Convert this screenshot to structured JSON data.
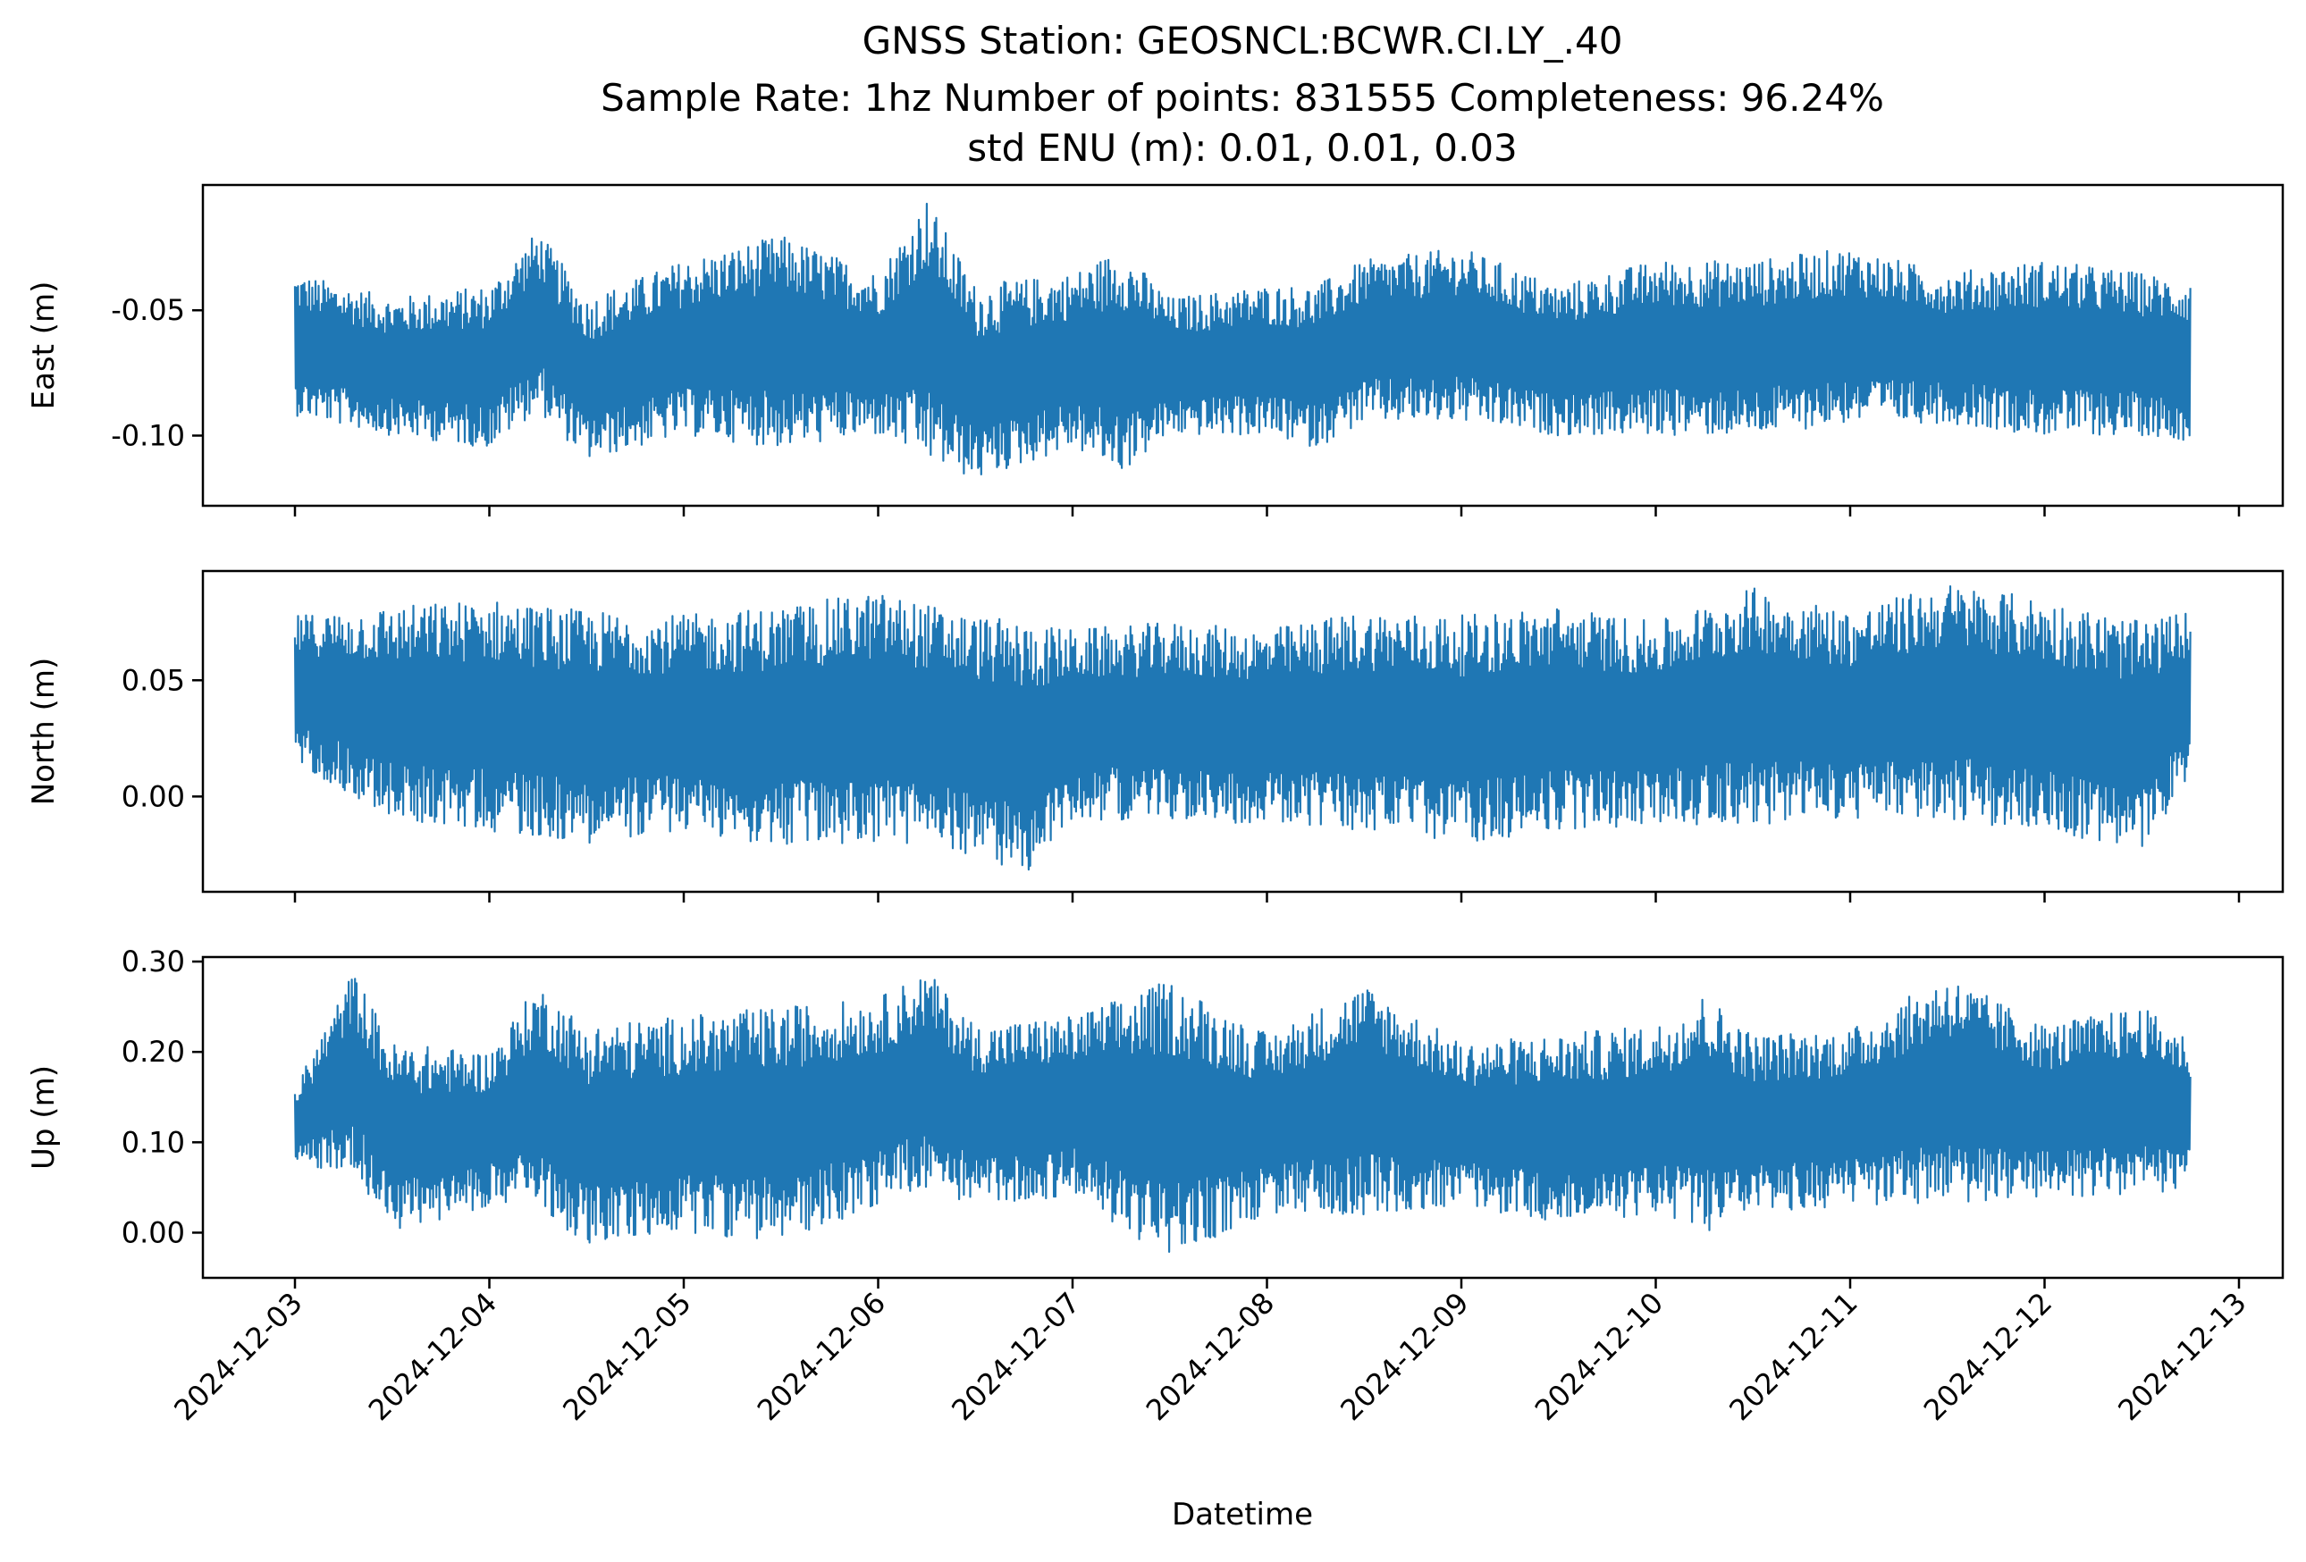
{
  "title": {
    "line1": "GNSS Station: GEOSNCL:BCWR.CI.LY_.40",
    "line2": "Sample Rate: 1hz   Number of points: 831555    Completeness:  96.24%",
    "line3": "std ENU (m):  0.01, 0.01, 0.03"
  },
  "xlabel": "Datetime",
  "colors": {
    "series": "#1f77b4",
    "axes": "#000000",
    "background": "#ffffff"
  },
  "chart_data": [
    {
      "type": "line",
      "ylabel": "East (m)",
      "ylim": [
        -0.128,
        0.0
      ],
      "yticks": [
        -0.05,
        -0.1
      ],
      "ytick_labels": [
        "-0.05",
        "-0.10"
      ],
      "x_range": [
        "2024-12-03",
        "2024-12-12T18:00"
      ],
      "envelope": {
        "x_days": [
          0,
          0.5,
          1.0,
          1.25,
          1.5,
          2.0,
          2.5,
          3.0,
          3.25,
          3.5,
          4.0,
          4.25,
          4.5,
          5.0,
          5.25,
          5.5,
          6.0,
          6.5,
          7.0,
          7.5,
          8.0,
          8.5,
          9.0,
          9.5,
          9.75
        ],
        "upper": [
          -0.035,
          -0.045,
          -0.04,
          -0.018,
          -0.045,
          -0.03,
          -0.02,
          -0.035,
          -0.005,
          -0.04,
          -0.035,
          -0.025,
          -0.045,
          -0.04,
          -0.04,
          -0.03,
          -0.025,
          -0.04,
          -0.03,
          -0.03,
          -0.025,
          -0.035,
          -0.03,
          -0.035,
          -0.038
        ],
        "lower": [
          -0.092,
          -0.1,
          -0.105,
          -0.09,
          -0.11,
          -0.1,
          -0.105,
          -0.1,
          -0.11,
          -0.118,
          -0.105,
          -0.115,
          -0.1,
          -0.1,
          -0.105,
          -0.095,
          -0.095,
          -0.1,
          -0.1,
          -0.1,
          -0.095,
          -0.095,
          -0.1,
          -0.1,
          -0.102
        ]
      }
    },
    {
      "type": "line",
      "ylabel": "North (m)",
      "ylim": [
        -0.041,
        0.097
      ],
      "yticks": [
        0.05,
        0.0
      ],
      "ytick_labels": [
        "0.05",
        "0.00"
      ],
      "x_range": [
        "2024-12-03",
        "2024-12-12T18:00"
      ],
      "envelope": {
        "x_days": [
          0,
          0.5,
          1.0,
          1.5,
          2.0,
          2.5,
          3.0,
          3.5,
          3.75,
          4.0,
          4.5,
          5.0,
          5.5,
          6.0,
          6.5,
          7.0,
          7.5,
          8.0,
          8.5,
          9.0,
          9.5,
          9.75
        ],
        "upper": [
          0.078,
          0.082,
          0.085,
          0.08,
          0.078,
          0.082,
          0.088,
          0.078,
          0.075,
          0.072,
          0.075,
          0.072,
          0.08,
          0.078,
          0.082,
          0.075,
          0.09,
          0.08,
          0.092,
          0.085,
          0.075,
          0.08
        ],
        "lower": [
          0.015,
          -0.01,
          -0.015,
          -0.02,
          -0.015,
          -0.022,
          -0.02,
          -0.025,
          -0.035,
          -0.01,
          -0.01,
          -0.012,
          -0.015,
          -0.02,
          -0.015,
          -0.012,
          -0.012,
          -0.01,
          -0.01,
          -0.015,
          -0.025,
          0.01
        ]
      }
    },
    {
      "type": "line",
      "ylabel": "Up (m)",
      "ylim": [
        -0.05,
        0.305
      ],
      "yticks": [
        0.3,
        0.2,
        0.1,
        0.0
      ],
      "ytick_labels": [
        "0.30",
        "0.20",
        "0.10",
        "0.00"
      ],
      "x_range": [
        "2024-12-03",
        "2024-12-12T18:00"
      ],
      "envelope": {
        "x_days": [
          0,
          0.3,
          0.5,
          1.0,
          1.25,
          1.5,
          2.0,
          2.5,
          3.0,
          3.25,
          3.5,
          4.0,
          4.5,
          5.0,
          5.5,
          6.0,
          6.5,
          7.0,
          7.25,
          7.5,
          8.0,
          8.5,
          9.0,
          9.5,
          9.75
        ],
        "upper": [
          0.16,
          0.29,
          0.21,
          0.2,
          0.275,
          0.23,
          0.24,
          0.25,
          0.26,
          0.29,
          0.23,
          0.24,
          0.28,
          0.22,
          0.275,
          0.21,
          0.22,
          0.23,
          0.265,
          0.22,
          0.225,
          0.285,
          0.23,
          0.25,
          0.215
        ],
        "lower": [
          0.07,
          0.07,
          0.0,
          0.03,
          0.03,
          -0.015,
          0.0,
          -0.01,
          0.03,
          0.05,
          0.03,
          0.04,
          -0.03,
          0.02,
          0.02,
          0.03,
          0.01,
          0.02,
          0.0,
          0.02,
          0.03,
          0.03,
          0.04,
          0.04,
          0.05
        ]
      }
    }
  ],
  "xticks": {
    "labels": [
      "2024-12-03",
      "2024-12-04",
      "2024-12-05",
      "2024-12-06",
      "2024-12-07",
      "2024-12-08",
      "2024-12-09",
      "2024-12-10",
      "2024-12-11",
      "2024-12-12",
      "2024-12-13"
    ],
    "days": [
      0,
      1,
      2,
      3,
      4,
      5,
      6,
      7,
      8,
      9,
      10
    ]
  }
}
